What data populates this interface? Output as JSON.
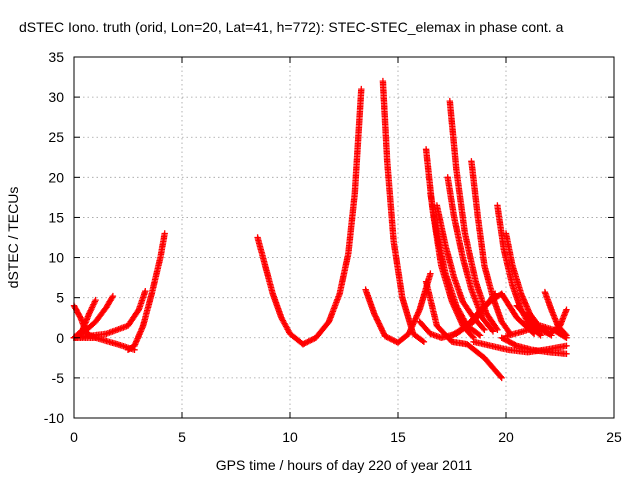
{
  "chart_data": {
    "type": "scatter",
    "title": "dSTEC Iono. truth (orid, Lon=20, Lat=41, h=772): STEC-STEC_elemax in phase cont. a",
    "xlabel": "GPS time / hours of day 220 of year 2011",
    "ylabel": "dSTEC  / TECUs",
    "xlim": [
      0,
      25
    ],
    "ylim": [
      -10,
      35
    ],
    "xticks": [
      0,
      5,
      10,
      15,
      20,
      25
    ],
    "yticks": [
      -10,
      -5,
      0,
      5,
      10,
      15,
      20,
      25,
      30,
      35
    ],
    "grid": true,
    "marker": "+",
    "color": "#ff0000",
    "series": [
      {
        "x": [
          0.0,
          0.3,
          0.6,
          1.0
        ],
        "y": [
          4.0,
          2.5,
          0.5,
          0.0
        ]
      },
      {
        "x": [
          0.0,
          0.4,
          0.7,
          1.0
        ],
        "y": [
          0.0,
          1.0,
          3.0,
          4.7
        ]
      },
      {
        "x": [
          0.0,
          0.5,
          1.0,
          1.5,
          1.8
        ],
        "y": [
          0.0,
          0.8,
          2.0,
          3.8,
          5.2
        ]
      },
      {
        "x": [
          0.0,
          1.0,
          2.0,
          2.8
        ],
        "y": [
          0.0,
          0.0,
          -0.8,
          -1.5
        ]
      },
      {
        "x": [
          0.0,
          1.5,
          2.5,
          3.0,
          3.3
        ],
        "y": [
          0.0,
          0.5,
          1.5,
          3.5,
          5.8
        ]
      },
      {
        "x": [
          2.5,
          2.8,
          3.2,
          3.6,
          4.0,
          4.2
        ],
        "y": [
          -1.5,
          -1.0,
          1.5,
          5.5,
          10.0,
          13.0
        ]
      },
      {
        "x": [
          8.5,
          8.8,
          9.2,
          9.6,
          10.0,
          10.6
        ],
        "y": [
          12.5,
          9.5,
          5.5,
          2.5,
          0.5,
          -0.8
        ]
      },
      {
        "x": [
          10.6,
          11.2,
          11.8,
          12.3,
          12.7,
          13.0,
          13.3
        ],
        "y": [
          -0.8,
          0.0,
          2.0,
          5.5,
          10.5,
          18.0,
          31.0
        ]
      },
      {
        "x": [
          14.3,
          14.5,
          14.8,
          15.2,
          15.7,
          16.2
        ],
        "y": [
          32.0,
          22.0,
          12.0,
          5.0,
          0.5,
          -0.5
        ]
      },
      {
        "x": [
          13.5,
          13.9,
          14.4,
          15.0,
          15.5,
          16.0,
          16.5
        ],
        "y": [
          6.0,
          3.0,
          0.2,
          -0.6,
          0.5,
          3.5,
          8.0
        ]
      },
      {
        "x": [
          16.3,
          16.6,
          17.0,
          17.5,
          18.0,
          18.5
        ],
        "y": [
          23.5,
          16.0,
          9.0,
          4.5,
          1.5,
          0.0
        ]
      },
      {
        "x": [
          16.5,
          16.8,
          17.2,
          17.7,
          18.2,
          18.8
        ],
        "y": [
          18.0,
          13.0,
          8.0,
          4.0,
          1.5,
          0.3
        ]
      },
      {
        "x": [
          16.8,
          17.2,
          17.6,
          18.0,
          18.5,
          19.0
        ],
        "y": [
          16.5,
          11.5,
          7.5,
          4.5,
          2.5,
          1.0
        ]
      },
      {
        "x": [
          17.4,
          17.7,
          18.1,
          18.6,
          19.1,
          19.6
        ],
        "y": [
          29.5,
          21.0,
          13.0,
          7.0,
          3.0,
          1.0
        ]
      },
      {
        "x": [
          17.3,
          17.6,
          18.0,
          18.4,
          18.9,
          19.4
        ],
        "y": [
          20.0,
          15.0,
          10.0,
          6.0,
          2.5,
          0.8
        ]
      },
      {
        "x": [
          18.4,
          18.7,
          19.0,
          19.4,
          19.8,
          20.2
        ],
        "y": [
          22.0,
          15.0,
          9.0,
          5.0,
          2.0,
          0.5
        ]
      },
      {
        "x": [
          16.3,
          16.8,
          17.5,
          18.2,
          19.0,
          19.8
        ],
        "y": [
          7.0,
          1.5,
          -0.5,
          -0.8,
          -2.5,
          -5.0
        ]
      },
      {
        "x": [
          16.0,
          16.5,
          17.0,
          17.7,
          18.5,
          19.5
        ],
        "y": [
          2.0,
          0.5,
          0.0,
          0.5,
          2.0,
          5.5
        ]
      },
      {
        "x": [
          17.5,
          18.2,
          19.0,
          19.8,
          20.5,
          21.3
        ],
        "y": [
          0.3,
          1.5,
          4.0,
          5.5,
          2.5,
          0.5
        ]
      },
      {
        "x": [
          19.6,
          19.9,
          20.3,
          20.7,
          21.1,
          21.6
        ],
        "y": [
          16.5,
          11.0,
          6.5,
          3.5,
          1.5,
          0.3
        ]
      },
      {
        "x": [
          20.0,
          20.3,
          20.7,
          21.1,
          21.6,
          22.1
        ],
        "y": [
          13.0,
          9.0,
          5.5,
          3.0,
          1.2,
          0.3
        ]
      },
      {
        "x": [
          19.8,
          20.5,
          21.2,
          22.0,
          22.8
        ],
        "y": [
          0.0,
          -1.0,
          -1.5,
          -1.8,
          -2.0
        ]
      },
      {
        "x": [
          18.5,
          19.3,
          20.1,
          21.0,
          21.8,
          22.8
        ],
        "y": [
          -0.5,
          -1.0,
          -1.5,
          -1.8,
          -1.5,
          -1.0
        ]
      },
      {
        "x": [
          20.5,
          21.0,
          21.5,
          22.0,
          22.5,
          22.8
        ],
        "y": [
          4.0,
          2.5,
          1.0,
          0.5,
          1.5,
          3.5
        ]
      },
      {
        "x": [
          21.8,
          22.1,
          22.4,
          22.8
        ],
        "y": [
          5.7,
          3.5,
          1.5,
          0.3
        ]
      },
      {
        "x": [
          20.0,
          20.8,
          21.6,
          22.2,
          22.8
        ],
        "y": [
          0.2,
          0.8,
          1.5,
          1.0,
          0.0
        ]
      }
    ]
  }
}
